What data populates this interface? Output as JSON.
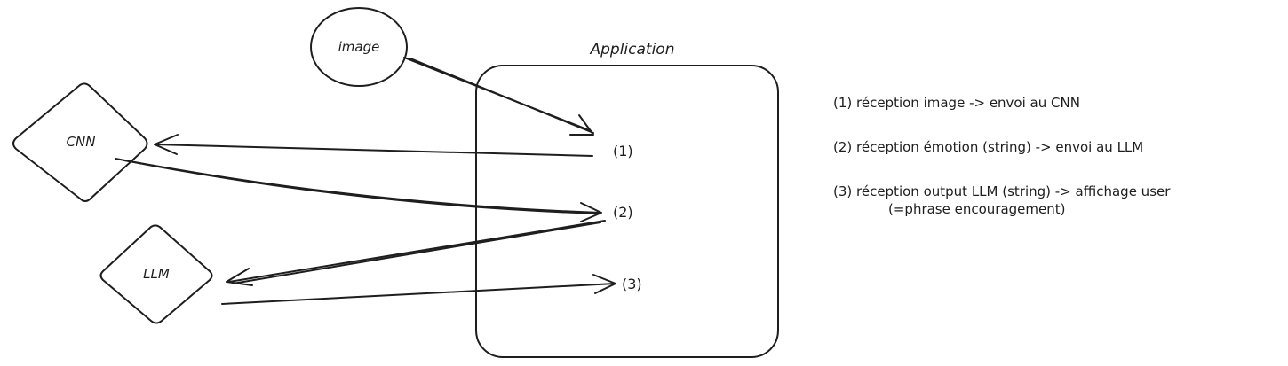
{
  "nodes": {
    "image": "image",
    "cnn": "CNN",
    "llm": "LLM",
    "application": "Application"
  },
  "steps": {
    "step1": "(1)",
    "step2": "(2)",
    "step3": "(3)"
  },
  "legend": {
    "item1": "(1) réception image -> envoi au CNN",
    "item2": "(2) réception émotion (string) -> envoi au LLM",
    "item3_line1": "(3) réception output LLM (string) -> affichage user",
    "item3_line2": "(=phrase encouragement)"
  }
}
